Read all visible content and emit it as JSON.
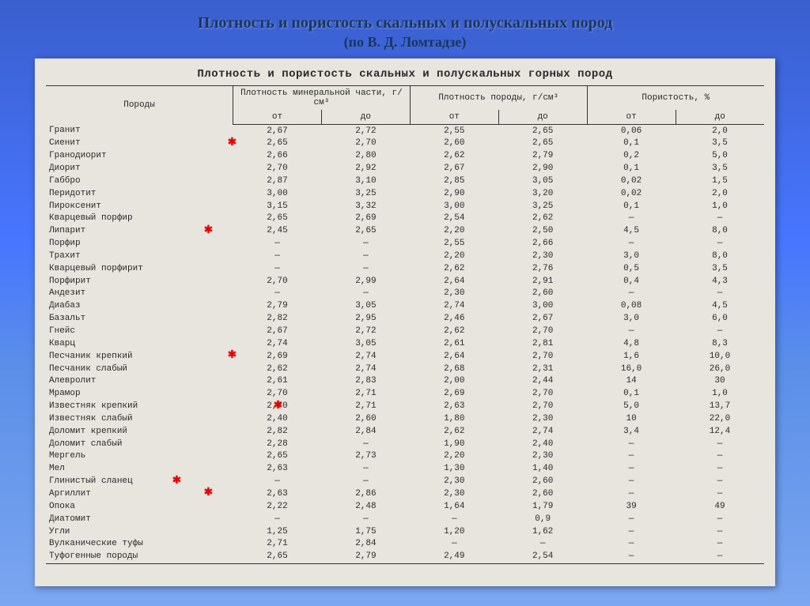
{
  "title": "Плотность и пористость скальных и полускальных пород",
  "subtitle": "(по В. Д. Ломтадзе)",
  "scan_title": "Плотность и пористость скальных и полускальных горных пород",
  "headers": {
    "col_rock": "Породы",
    "col_mineral": "Плотность минеральной части, г/см³",
    "col_density": "Плотность породы, г/см³",
    "col_porosity": "Пористость, %",
    "from": "от",
    "to": "до"
  },
  "rows": [
    {
      "name": "Гранит",
      "m_from": "2,67",
      "m_to": "2,72",
      "d_from": "2,55",
      "d_to": "2,65",
      "p_from": "0,06",
      "p_to": "2,0",
      "mark": false
    },
    {
      "name": "Сиенит",
      "m_from": "2,65",
      "m_to": "2,70",
      "d_from": "2,60",
      "d_to": "2,65",
      "p_from": "0,1",
      "p_to": "3,5",
      "mark": true,
      "mx": 230
    },
    {
      "name": "Гранодиорит",
      "m_from": "2,66",
      "m_to": "2,80",
      "d_from": "2,62",
      "d_to": "2,79",
      "p_from": "0,2",
      "p_to": "5,0",
      "mark": false
    },
    {
      "name": "Диорит",
      "m_from": "2,70",
      "m_to": "2,92",
      "d_from": "2,67",
      "d_to": "2,90",
      "p_from": "0,1",
      "p_to": "3,5",
      "mark": false
    },
    {
      "name": "Габбро",
      "m_from": "2,87",
      "m_to": "3,10",
      "d_from": "2,85",
      "d_to": "3,05",
      "p_from": "0,02",
      "p_to": "1,5",
      "mark": false
    },
    {
      "name": "Перидотит",
      "m_from": "3,00",
      "m_to": "3,25",
      "d_from": "2,90",
      "d_to": "3,20",
      "p_from": "0,02",
      "p_to": "2,0",
      "mark": false
    },
    {
      "name": "Пироксенит",
      "m_from": "3,15",
      "m_to": "3,32",
      "d_from": "3,00",
      "d_to": "3,25",
      "p_from": "0,1",
      "p_to": "1,0",
      "mark": false
    },
    {
      "name": "Кварцевый порфир",
      "m_from": "2,65",
      "m_to": "2,69",
      "d_from": "2,54",
      "d_to": "2,62",
      "p_from": "—",
      "p_to": "—",
      "mark": false
    },
    {
      "name": "Липарит",
      "m_from": "2,45",
      "m_to": "2,65",
      "d_from": "2,20",
      "d_to": "2,50",
      "p_from": "4,5",
      "p_to": "8,0",
      "mark": true,
      "mx": 200
    },
    {
      "name": "Порфир",
      "m_from": "—",
      "m_to": "—",
      "d_from": "2,55",
      "d_to": "2,66",
      "p_from": "—",
      "p_to": "—",
      "mark": false
    },
    {
      "name": "Трахит",
      "m_from": "—",
      "m_to": "—",
      "d_from": "2,20",
      "d_to": "2,30",
      "p_from": "3,0",
      "p_to": "8,0",
      "mark": false
    },
    {
      "name": "Кварцевый порфирит",
      "m_from": "—",
      "m_to": "—",
      "d_from": "2,62",
      "d_to": "2,76",
      "p_from": "0,5",
      "p_to": "3,5",
      "mark": false
    },
    {
      "name": "Порфирит",
      "m_from": "2,70",
      "m_to": "2,99",
      "d_from": "2,64",
      "d_to": "2,91",
      "p_from": "0,4",
      "p_to": "4,3",
      "mark": false
    },
    {
      "name": "Андезит",
      "m_from": "—",
      "m_to": "—",
      "d_from": "2,30",
      "d_to": "2,60",
      "p_from": "—",
      "p_to": "—",
      "mark": false
    },
    {
      "name": "Диабаз",
      "m_from": "2,79",
      "m_to": "3,05",
      "d_from": "2,74",
      "d_to": "3,00",
      "p_from": "0,08",
      "p_to": "4,5",
      "mark": false
    },
    {
      "name": "Базальт",
      "m_from": "2,82",
      "m_to": "2,95",
      "d_from": "2,46",
      "d_to": "2,67",
      "p_from": "3,0",
      "p_to": "6,0",
      "mark": false
    },
    {
      "name": "Гнейс",
      "m_from": "2,67",
      "m_to": "2,72",
      "d_from": "2,62",
      "d_to": "2,70",
      "p_from": "—",
      "p_to": "—",
      "mark": false
    },
    {
      "name": "Кварц",
      "m_from": "2,74",
      "m_to": "3,05",
      "d_from": "2,61",
      "d_to": "2,81",
      "p_from": "4,8",
      "p_to": "8,3",
      "mark": false
    },
    {
      "name": "Песчаник крепкий",
      "m_from": "2,69",
      "m_to": "2,74",
      "d_from": "2,64",
      "d_to": "2,70",
      "p_from": "1,6",
      "p_to": "10,0",
      "mark": true,
      "mx": 230
    },
    {
      "name": "Песчаник слабый",
      "m_from": "2,62",
      "m_to": "2,74",
      "d_from": "2,68",
      "d_to": "2,31",
      "p_from": "16,0",
      "p_to": "26,0",
      "mark": false
    },
    {
      "name": "Алевролит",
      "m_from": "2,61",
      "m_to": "2,83",
      "d_from": "2,00",
      "d_to": "2,44",
      "p_from": "14",
      "p_to": "30",
      "mark": false
    },
    {
      "name": "Мрамор",
      "m_from": "2,70",
      "m_to": "2,71",
      "d_from": "2,69",
      "d_to": "2,70",
      "p_from": "0,1",
      "p_to": "1,0",
      "mark": false
    },
    {
      "name": "Известняк крепкий",
      "m_from": "2,70",
      "m_to": "2,71",
      "d_from": "2,63",
      "d_to": "2,70",
      "p_from": "5,0",
      "p_to": "13,7",
      "mark": true,
      "mx": 288
    },
    {
      "name": "Известняк слабый",
      "m_from": "2,40",
      "m_to": "2,60",
      "d_from": "1,80",
      "d_to": "2,30",
      "p_from": "10",
      "p_to": "22,0",
      "mark": false
    },
    {
      "name": "Доломит крепкий",
      "m_from": "2,82",
      "m_to": "2,84",
      "d_from": "2,62",
      "d_to": "2,74",
      "p_from": "3,4",
      "p_to": "12,4",
      "mark": false
    },
    {
      "name": "Доломит слабый",
      "m_from": "2,28",
      "m_to": "—",
      "d_from": "1,90",
      "d_to": "2,40",
      "p_from": "—",
      "p_to": "—",
      "mark": false
    },
    {
      "name": "Мергель",
      "m_from": "2,65",
      "m_to": "2,73",
      "d_from": "2,20",
      "d_to": "2,30",
      "p_from": "—",
      "p_to": "—",
      "mark": false
    },
    {
      "name": "Мел",
      "m_from": "2,63",
      "m_to": "—",
      "d_from": "1,30",
      "d_to": "1,40",
      "p_from": "—",
      "p_to": "—",
      "mark": false
    },
    {
      "name": "Глинистый сланец",
      "m_from": "—",
      "m_to": "—",
      "d_from": "2,30",
      "d_to": "2,60",
      "p_from": "—",
      "p_to": "—",
      "mark": true,
      "mx": 160
    },
    {
      "name": "Аргиллит",
      "m_from": "2,63",
      "m_to": "2,86",
      "d_from": "2,30",
      "d_to": "2,60",
      "p_from": "—",
      "p_to": "—",
      "mark": true,
      "mx": 200
    },
    {
      "name": "Опока",
      "m_from": "2,22",
      "m_to": "2,48",
      "d_from": "1,64",
      "d_to": "1,79",
      "p_from": "39",
      "p_to": "49",
      "mark": false
    },
    {
      "name": "Диатомит",
      "m_from": "—",
      "m_to": "—",
      "d_from": "—",
      "d_to": "0,9",
      "p_from": "—",
      "p_to": "—",
      "mark": false
    },
    {
      "name": "Угли",
      "m_from": "1,25",
      "m_to": "1,75",
      "d_from": "1,20",
      "d_to": "1,62",
      "p_from": "—",
      "p_to": "—",
      "mark": false
    },
    {
      "name": "Вулканические туфы",
      "m_from": "2,71",
      "m_to": "2,84",
      "d_from": "—",
      "d_to": "—",
      "p_from": "—",
      "p_to": "—",
      "mark": false
    },
    {
      "name": "Туфогенные породы",
      "m_from": "2,65",
      "m_to": "2,79",
      "d_from": "2,49",
      "d_to": "2,54",
      "p_from": "—",
      "p_to": "—",
      "mark": false
    }
  ]
}
